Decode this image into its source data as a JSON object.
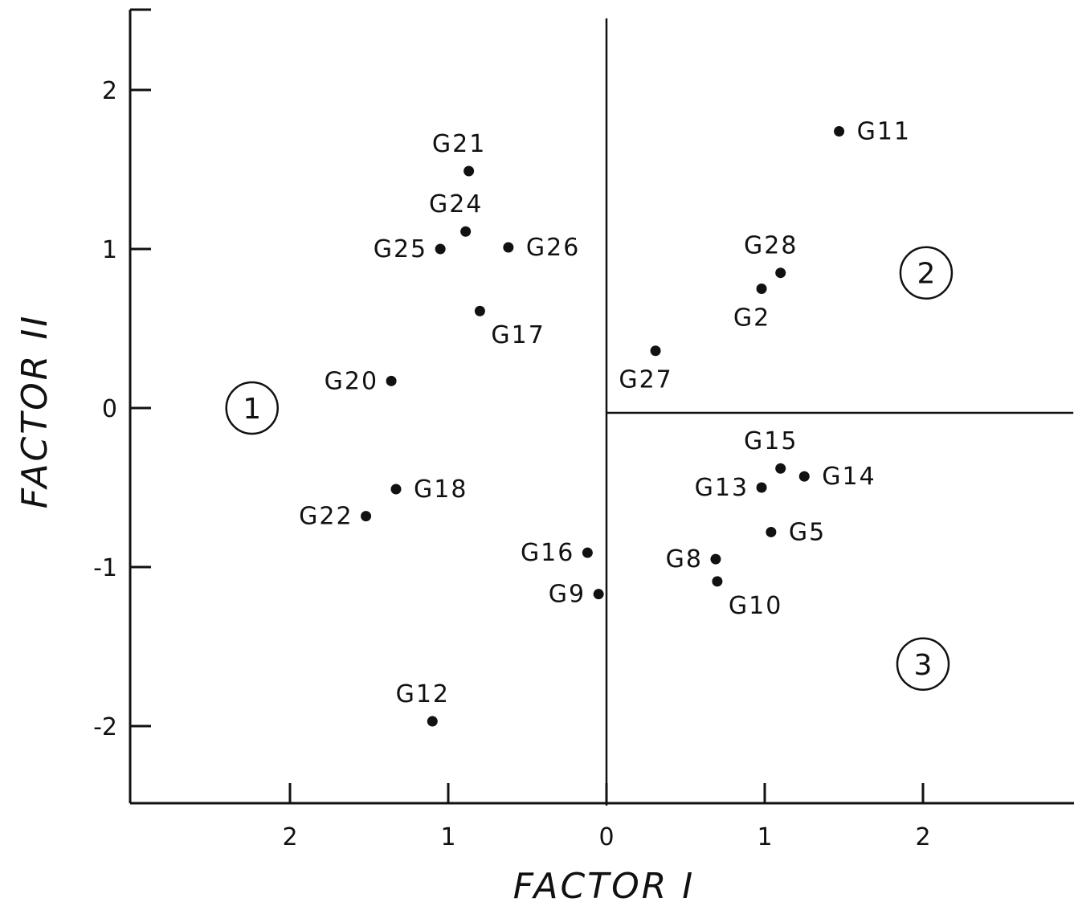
{
  "chart_data": {
    "type": "scatter",
    "xlabel": "FACTOR I",
    "ylabel": "FACTOR II",
    "xlim": [
      -2.98,
      2.95
    ],
    "ylim": [
      -2.5,
      2.5
    ],
    "x_axis_reversed_labels": true,
    "x_ticks": [
      {
        "value": -2,
        "label": "2"
      },
      {
        "value": -1,
        "label": "1"
      },
      {
        "value": 0,
        "label": "0"
      },
      {
        "value": 1,
        "label": "1"
      },
      {
        "value": 2,
        "label": "2"
      }
    ],
    "y_ticks": [
      {
        "value": 2,
        "label": "2"
      },
      {
        "value": 1,
        "label": "1"
      },
      {
        "value": 0,
        "label": "0"
      },
      {
        "value": -1,
        "label": "-1"
      },
      {
        "value": -2,
        "label": "-2"
      }
    ],
    "points": [
      {
        "label": "G21",
        "x": -0.87,
        "y": 1.49,
        "label_pos": "above"
      },
      {
        "label": "G24",
        "x": -0.89,
        "y": 1.11,
        "label_pos": "above"
      },
      {
        "label": "G25",
        "x": -1.05,
        "y": 1.0,
        "label_pos": "left"
      },
      {
        "label": "G26",
        "x": -0.62,
        "y": 1.01,
        "label_pos": "right"
      },
      {
        "label": "G17",
        "x": -0.8,
        "y": 0.61,
        "label_pos": "below-right"
      },
      {
        "label": "G20",
        "x": -1.36,
        "y": 0.17,
        "label_pos": "left"
      },
      {
        "label": "G18",
        "x": -1.33,
        "y": -0.51,
        "label_pos": "right"
      },
      {
        "label": "G22",
        "x": -1.52,
        "y": -0.68,
        "label_pos": "left"
      },
      {
        "label": "G16",
        "x": -0.12,
        "y": -0.91,
        "label_pos": "left"
      },
      {
        "label": "G9",
        "x": -0.05,
        "y": -1.17,
        "label_pos": "left"
      },
      {
        "label": "G12",
        "x": -1.1,
        "y": -1.97,
        "label_pos": "above"
      },
      {
        "label": "G11",
        "x": 1.47,
        "y": 1.74,
        "label_pos": "right"
      },
      {
        "label": "G28",
        "x": 1.1,
        "y": 0.85,
        "label_pos": "above"
      },
      {
        "label": "G2",
        "x": 0.98,
        "y": 0.75,
        "label_pos": "below"
      },
      {
        "label": "G27",
        "x": 0.31,
        "y": 0.36,
        "label_pos": "below"
      },
      {
        "label": "G15",
        "x": 1.1,
        "y": -0.38,
        "label_pos": "above"
      },
      {
        "label": "G14",
        "x": 1.25,
        "y": -0.43,
        "label_pos": "right"
      },
      {
        "label": "G13",
        "x": 0.98,
        "y": -0.5,
        "label_pos": "left"
      },
      {
        "label": "G5",
        "x": 1.04,
        "y": -0.78,
        "label_pos": "right"
      },
      {
        "label": "G8",
        "x": 0.69,
        "y": -0.95,
        "label_pos": "left"
      },
      {
        "label": "G10",
        "x": 0.7,
        "y": -1.09,
        "label_pos": "below-right"
      }
    ],
    "regions": [
      {
        "label": "1",
        "x": -2.24,
        "y": 0.0
      },
      {
        "label": "2",
        "x": 2.02,
        "y": 0.85
      },
      {
        "label": "3",
        "x": 2.0,
        "y": -1.61
      }
    ],
    "dividers": [
      {
        "orientation": "vertical",
        "x": 0,
        "y_from": -2.5,
        "y_to": 2.45
      },
      {
        "orientation": "horizontal",
        "y": -0.03,
        "x_from": 0,
        "x_to": 2.95
      }
    ],
    "grid": false,
    "legend": "none"
  }
}
